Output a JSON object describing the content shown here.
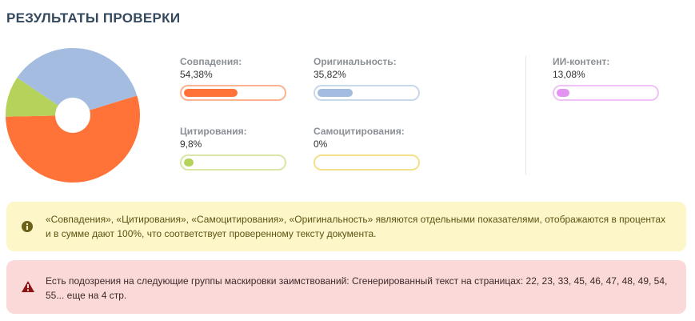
{
  "page": {
    "title": "РЕЗУЛЬТАТЫ ПРОВЕРКИ"
  },
  "chart_data": {
    "type": "pie",
    "categories": [
      "Совпадения",
      "Оригинальность",
      "Цитирования",
      "Самоцитирования"
    ],
    "values": [
      54.38,
      35.82,
      9.8,
      0
    ],
    "colors": [
      "#ff7338",
      "#a3bcdf",
      "#b5d25a",
      "#f3e08a"
    ],
    "donut": true
  },
  "metrics": [
    {
      "label": "Совпадения:",
      "value": "54,38%",
      "percent": 54.38,
      "color": "#ff7338",
      "border": "#ffb392"
    },
    {
      "label": "Оригинальность:",
      "value": "35,82%",
      "percent": 35.82,
      "color": "#a3bcdf",
      "border": "#cad8ec"
    },
    {
      "label": "Цитирования:",
      "value": "9,8%",
      "percent": 9.8,
      "color": "#b5d25a",
      "border": "#d8e6a6"
    },
    {
      "label": "Самоцитирования:",
      "value": "0%",
      "percent": 0,
      "color": "#f3e08a",
      "border": "#f3e08a"
    },
    {
      "label": "ИИ-контент:",
      "value": "13,08%",
      "percent": 13.08,
      "color": "#e394f3",
      "border": "#f0c3f7"
    }
  ],
  "alerts": {
    "info": {
      "icon": "info-icon",
      "text": "«Совпадения», «Цитирования», «Самоцитирования», «Оригинальность» являются отдельными показателями, отображаются в процентах и в сумме дают 100%, что соответствует проверенному тексту документа."
    },
    "warning": {
      "icon": "warning-icon",
      "text": "Есть подозрения на следующие группы маскировки заимствований:  Сгенерированный текст на страницах: 22, 23, 33, 45, 46, 47, 48, 49, 54, 55... еще на 4 стр."
    }
  }
}
